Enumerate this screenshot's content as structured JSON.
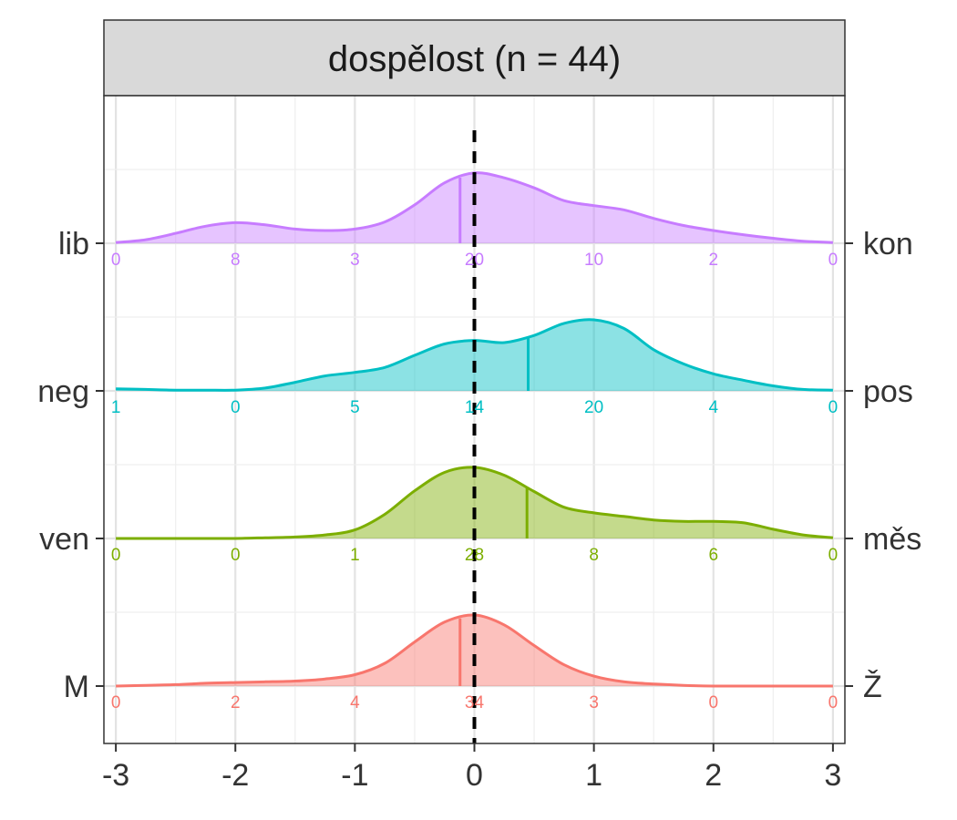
{
  "chart_data": {
    "type": "area",
    "title": "dospělost (n = 44)",
    "xlim": [
      -3.1,
      3.1
    ],
    "x_ticks": [
      -3,
      -2,
      -1,
      0,
      1,
      2,
      3
    ],
    "x_tick_labels": [
      "-3",
      "-2",
      "-1",
      "0",
      "1",
      "2",
      "3"
    ],
    "reference_line_x": 0,
    "grid": true,
    "series": [
      {
        "left_label": "lib",
        "right_label": "kon",
        "color": "#C77CFF",
        "mean": -0.12,
        "counts": [
          0,
          8,
          3,
          20,
          10,
          2,
          0
        ],
        "density_x": [
          -3.0,
          -2.75,
          -2.5,
          -2.25,
          -2.0,
          -1.75,
          -1.5,
          -1.25,
          -1.0,
          -0.75,
          -0.5,
          -0.25,
          0.0,
          0.25,
          0.5,
          0.75,
          1.0,
          1.25,
          1.5,
          1.75,
          2.0,
          2.25,
          2.5,
          2.75,
          3.0
        ],
        "density_y": [
          0.01,
          0.05,
          0.14,
          0.24,
          0.29,
          0.26,
          0.2,
          0.18,
          0.2,
          0.3,
          0.54,
          0.85,
          0.99,
          0.92,
          0.78,
          0.6,
          0.53,
          0.47,
          0.35,
          0.25,
          0.18,
          0.12,
          0.07,
          0.03,
          0.01
        ]
      },
      {
        "left_label": "neg",
        "right_label": "pos",
        "color": "#00BFC4",
        "mean": 0.45,
        "counts": [
          1,
          0,
          5,
          14,
          20,
          4,
          0
        ],
        "density_x": [
          -3.0,
          -2.75,
          -2.5,
          -2.25,
          -2.0,
          -1.75,
          -1.5,
          -1.25,
          -1.0,
          -0.75,
          -0.5,
          -0.25,
          0.0,
          0.25,
          0.5,
          0.75,
          1.0,
          1.25,
          1.5,
          1.75,
          2.0,
          2.25,
          2.5,
          2.75,
          3.0
        ],
        "density_y": [
          0.03,
          0.02,
          0.01,
          0.01,
          0.01,
          0.04,
          0.12,
          0.21,
          0.26,
          0.33,
          0.5,
          0.66,
          0.71,
          0.68,
          0.78,
          0.95,
          1.0,
          0.88,
          0.58,
          0.38,
          0.24,
          0.15,
          0.07,
          0.02,
          0.01
        ]
      },
      {
        "left_label": "ven",
        "right_label": "měs",
        "color": "#7CAE00",
        "mean": 0.44,
        "counts": [
          0,
          0,
          1,
          28,
          8,
          6,
          0
        ],
        "density_x": [
          -3.0,
          -2.75,
          -2.5,
          -2.25,
          -2.0,
          -1.75,
          -1.5,
          -1.25,
          -1.0,
          -0.75,
          -0.5,
          -0.25,
          0.0,
          0.25,
          0.5,
          0.75,
          1.0,
          1.25,
          1.5,
          1.75,
          2.0,
          2.25,
          2.5,
          2.75,
          3.0
        ],
        "density_y": [
          0.0,
          0.0,
          0.0,
          0.0,
          0.0,
          0.01,
          0.02,
          0.05,
          0.12,
          0.34,
          0.67,
          0.93,
          1.0,
          0.89,
          0.66,
          0.44,
          0.36,
          0.31,
          0.26,
          0.24,
          0.24,
          0.22,
          0.13,
          0.05,
          0.01
        ]
      },
      {
        "left_label": "M",
        "right_label": "Ž",
        "color": "#F8766D",
        "mean": -0.12,
        "counts": [
          0,
          2,
          4,
          34,
          3,
          0,
          0
        ],
        "density_x": [
          -3.0,
          -2.75,
          -2.5,
          -2.25,
          -2.0,
          -1.75,
          -1.5,
          -1.25,
          -1.0,
          -0.75,
          -0.5,
          -0.25,
          0.0,
          0.25,
          0.5,
          0.75,
          1.0,
          1.25,
          1.5,
          1.75,
          2.0,
          2.25,
          2.5,
          2.75,
          3.0
        ],
        "density_y": [
          0.0,
          0.01,
          0.02,
          0.04,
          0.05,
          0.06,
          0.07,
          0.1,
          0.16,
          0.32,
          0.62,
          0.9,
          1.0,
          0.86,
          0.57,
          0.3,
          0.14,
          0.06,
          0.03,
          0.01,
          0.0,
          0.0,
          0.0,
          0.0,
          0.0
        ]
      }
    ]
  }
}
